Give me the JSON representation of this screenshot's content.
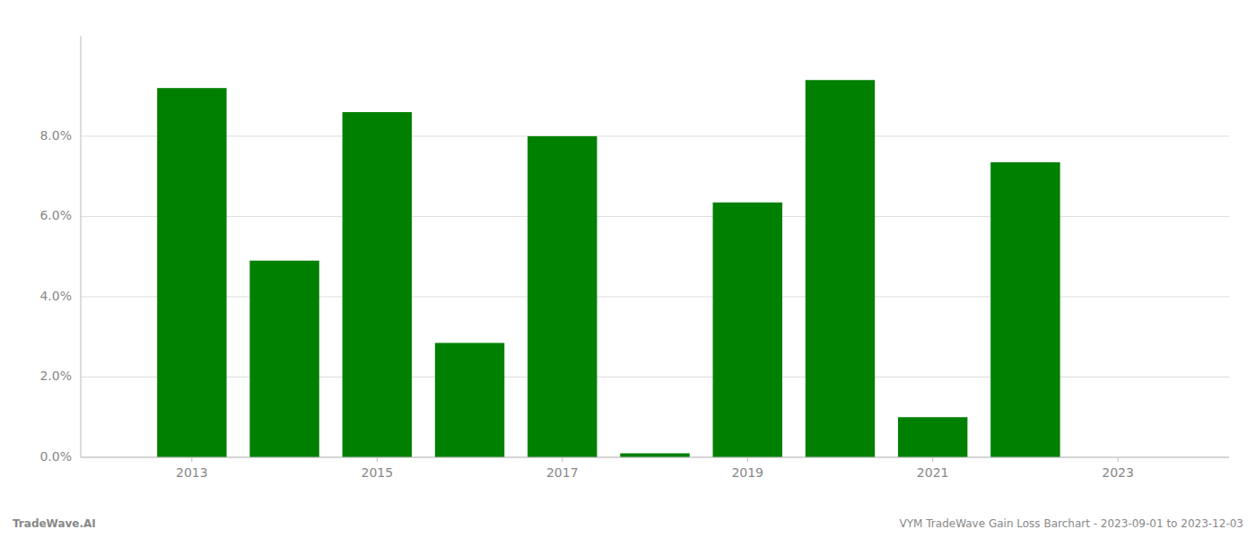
{
  "chart_data": {
    "type": "bar",
    "x": [
      2013,
      2014,
      2015,
      2016,
      2017,
      2018,
      2019,
      2020,
      2021,
      2022,
      2023
    ],
    "values": [
      0.092,
      0.049,
      0.086,
      0.0285,
      0.08,
      0.001,
      0.0635,
      0.094,
      0.01,
      0.0735,
      null
    ],
    "color": "#008000",
    "xlim": [
      2011.8,
      2024.2
    ],
    "xticks": [
      2013,
      2015,
      2017,
      2019,
      2021,
      2023
    ],
    "ylim": [
      0,
      0.105
    ],
    "yticks": [
      {
        "value": 0.0,
        "label": "0.0%"
      },
      {
        "value": 0.02,
        "label": "2.0%"
      },
      {
        "value": 0.04,
        "label": "4.0%"
      },
      {
        "value": 0.06,
        "label": "6.0%"
      },
      {
        "value": 0.08,
        "label": "8.0%"
      }
    ],
    "grid": true,
    "annotations": [
      "TradeWave.AI",
      "VYM TradeWave Gain Loss Barchart - 2023-09-01 to 2023-12-03"
    ]
  }
}
